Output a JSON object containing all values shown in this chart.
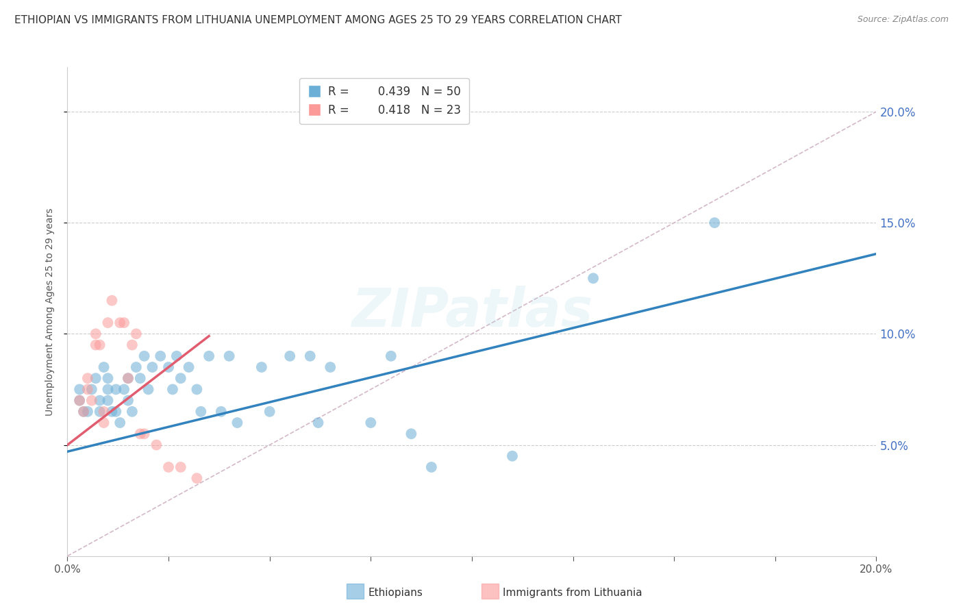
{
  "title": "ETHIOPIAN VS IMMIGRANTS FROM LITHUANIA UNEMPLOYMENT AMONG AGES 25 TO 29 YEARS CORRELATION CHART",
  "source": "Source: ZipAtlas.com",
  "ylabel": "Unemployment Among Ages 25 to 29 years",
  "xlim": [
    0.0,
    0.2
  ],
  "ylim": [
    0.0,
    0.22
  ],
  "yticks_right": [
    0.05,
    0.1,
    0.15,
    0.2
  ],
  "xticks_labels": [
    0.0,
    0.2
  ],
  "xticks_minor": [
    0.025,
    0.05,
    0.075,
    0.1,
    0.125,
    0.15,
    0.175
  ],
  "r_blue": 0.439,
  "n_blue": 50,
  "r_pink": 0.418,
  "n_pink": 23,
  "blue_color": "#6baed6",
  "pink_color": "#fb9a99",
  "line_blue": "#3182bd",
  "line_pink": "#e05c6e",
  "line_diag": "#d4b8c8",
  "legend_blue": "Ethiopians",
  "legend_pink": "Immigrants from Lithuania",
  "blue_x": [
    0.003,
    0.003,
    0.004,
    0.005,
    0.006,
    0.007,
    0.008,
    0.008,
    0.009,
    0.01,
    0.01,
    0.01,
    0.011,
    0.012,
    0.012,
    0.013,
    0.014,
    0.015,
    0.015,
    0.016,
    0.017,
    0.018,
    0.019,
    0.02,
    0.021,
    0.023,
    0.025,
    0.026,
    0.027,
    0.028,
    0.03,
    0.032,
    0.033,
    0.035,
    0.038,
    0.04,
    0.042,
    0.048,
    0.05,
    0.055,
    0.06,
    0.062,
    0.065,
    0.075,
    0.08,
    0.085,
    0.09,
    0.11,
    0.13,
    0.16
  ],
  "blue_y": [
    0.07,
    0.075,
    0.065,
    0.065,
    0.075,
    0.08,
    0.065,
    0.07,
    0.085,
    0.075,
    0.08,
    0.07,
    0.065,
    0.075,
    0.065,
    0.06,
    0.075,
    0.08,
    0.07,
    0.065,
    0.085,
    0.08,
    0.09,
    0.075,
    0.085,
    0.09,
    0.085,
    0.075,
    0.09,
    0.08,
    0.085,
    0.075,
    0.065,
    0.09,
    0.065,
    0.09,
    0.06,
    0.085,
    0.065,
    0.09,
    0.09,
    0.06,
    0.085,
    0.06,
    0.09,
    0.055,
    0.04,
    0.045,
    0.125,
    0.15
  ],
  "pink_x": [
    0.003,
    0.004,
    0.005,
    0.005,
    0.006,
    0.007,
    0.007,
    0.008,
    0.009,
    0.009,
    0.01,
    0.011,
    0.013,
    0.014,
    0.015,
    0.016,
    0.017,
    0.018,
    0.019,
    0.022,
    0.025,
    0.028,
    0.032
  ],
  "pink_y": [
    0.07,
    0.065,
    0.075,
    0.08,
    0.07,
    0.095,
    0.1,
    0.095,
    0.065,
    0.06,
    0.105,
    0.115,
    0.105,
    0.105,
    0.08,
    0.095,
    0.1,
    0.055,
    0.055,
    0.05,
    0.04,
    0.04,
    0.035
  ],
  "blue_line_x": [
    0.0,
    0.2
  ],
  "blue_line_y": [
    0.047,
    0.136
  ],
  "pink_line_x": [
    0.0,
    0.035
  ],
  "pink_line_y": [
    0.05,
    0.099
  ],
  "diag_line_x": [
    0.0,
    0.2
  ],
  "diag_line_y": [
    0.0,
    0.2
  ],
  "watermark": "ZIPatlas",
  "title_fontsize": 11,
  "label_fontsize": 10,
  "tick_fontsize": 11,
  "source_fontsize": 9,
  "legend_fontsize": 12,
  "background_color": "#ffffff",
  "tick_color_right": "#4472c4",
  "grid_color": "#cccccc",
  "spine_color": "#cccccc"
}
